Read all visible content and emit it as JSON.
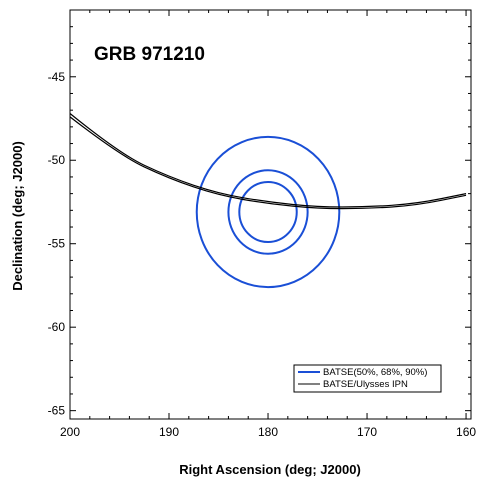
{
  "chart_data": {
    "type": "line",
    "title": "GRB 971210",
    "xlabel": "Right Ascension (deg; J2000)",
    "ylabel": "Declination (deg; J2000)",
    "xlim": [
      200,
      159.5
    ],
    "ylim": [
      -65.5,
      -41
    ],
    "x_ticks": [
      200,
      190,
      180,
      170,
      160
    ],
    "x_tick_labels": [
      "200",
      "190",
      "180",
      "170",
      "160"
    ],
    "y_ticks": [
      -45,
      -50,
      -55,
      -60,
      -65
    ],
    "y_tick_labels": [
      "-45",
      "-50",
      "-55",
      "-60",
      "-65"
    ],
    "grid": false,
    "legend_position": "bottom-right",
    "legend": [
      {
        "label": "BATSE(50%, 68%, 90%)",
        "color": "#1a4fd6"
      },
      {
        "label": "BATSE/Ulysses IPN",
        "color": "#000000"
      }
    ],
    "series": [
      {
        "name": "BATSE(50%, 68%, 90%)",
        "kind": "contours",
        "color": "#1a4fd6",
        "center": [
          180.0,
          -53.1
        ],
        "contours": [
          {
            "level": "50%",
            "radius_ra": 2.9,
            "radius_dec": 1.8
          },
          {
            "level": "68%",
            "radius_ra": 4.0,
            "radius_dec": 2.5
          },
          {
            "level": "90%",
            "radius_ra": 7.2,
            "radius_dec": 4.5
          }
        ]
      },
      {
        "name": "BATSE/Ulysses IPN",
        "kind": "annulus",
        "color": "#000000",
        "curves": [
          {
            "x": [
              200,
              195,
              190,
              185,
              180,
              175,
              170,
              165,
              160
            ],
            "y": [
              -47.2,
              -49.6,
              -51.0,
              -52.0,
              -52.5,
              -52.8,
              -52.8,
              -52.6,
              -52.0
            ]
          },
          {
            "x": [
              200,
              195,
              190,
              185,
              180,
              175,
              170,
              165,
              160
            ],
            "y": [
              -47.4,
              -49.7,
              -51.1,
              -52.1,
              -52.6,
              -52.9,
              -52.9,
              -52.7,
              -52.1
            ]
          }
        ]
      }
    ]
  }
}
